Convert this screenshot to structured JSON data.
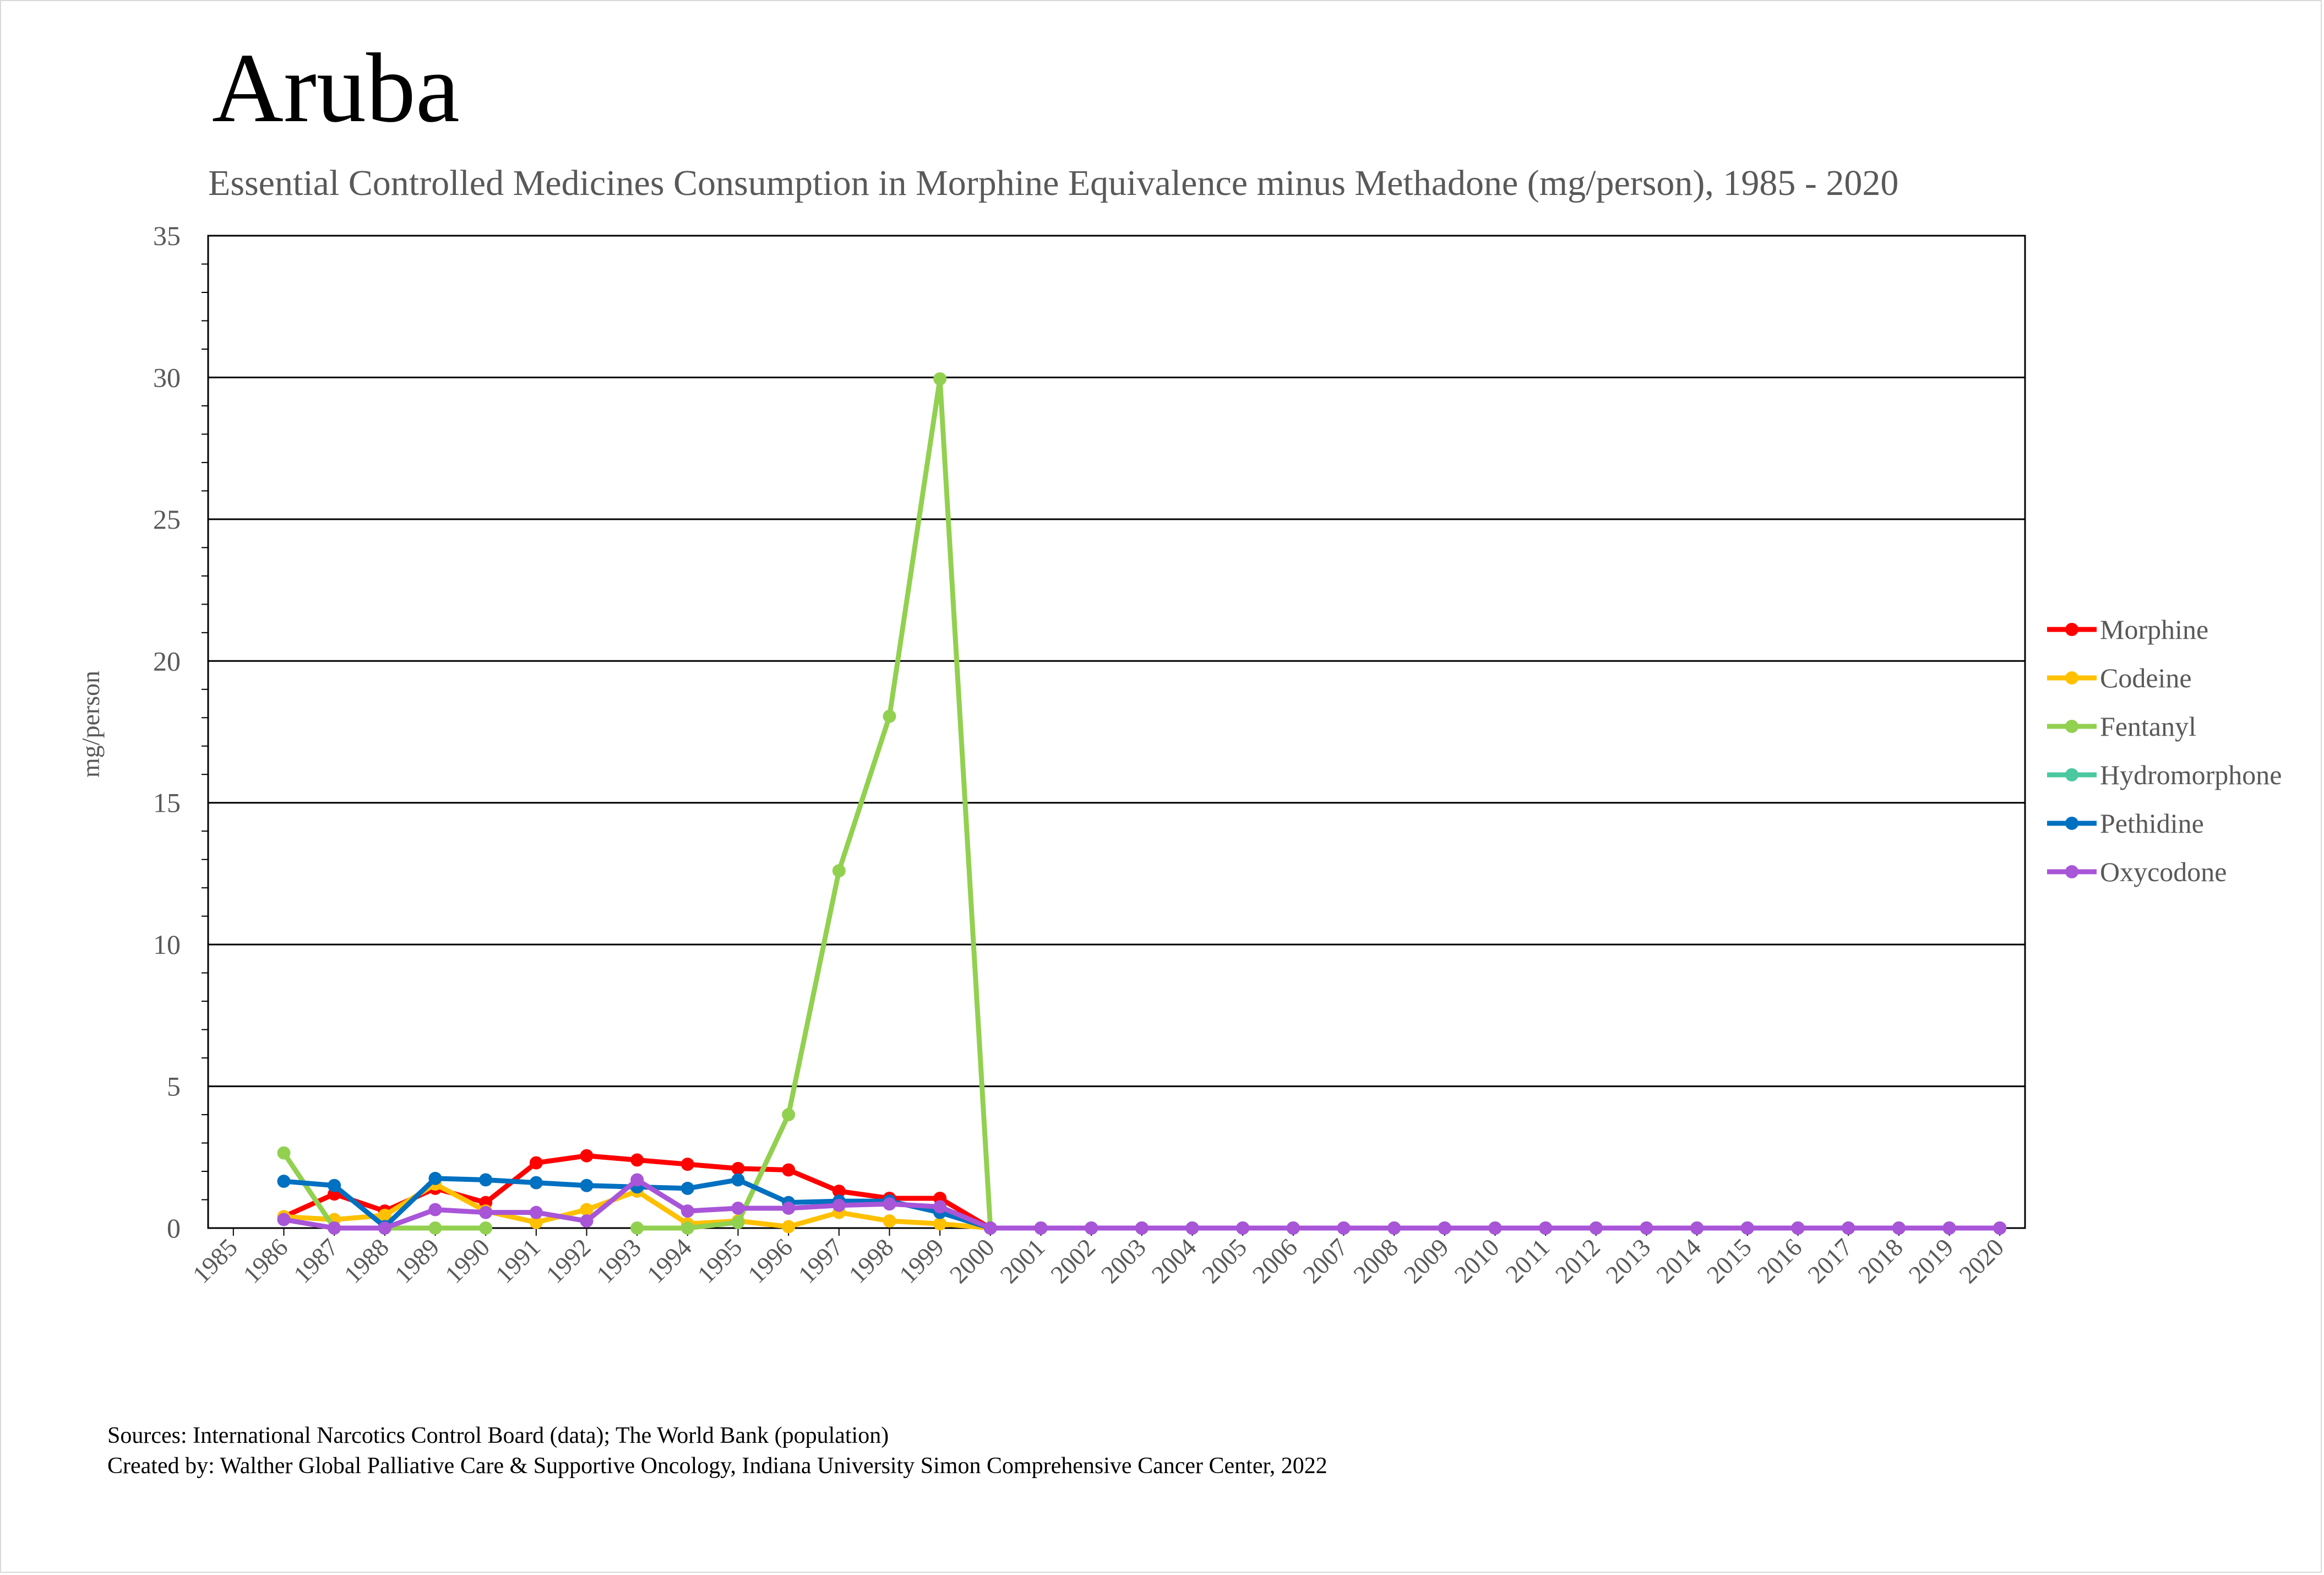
{
  "chart_data": {
    "type": "line",
    "title": "Aruba",
    "subtitle": "Essential Controlled Medicines Consumption in Morphine Equivalence minus Methadone (mg/person), 1985 - 2020",
    "xlabel": "",
    "ylabel": "mg/person",
    "ylim": [
      0,
      35
    ],
    "yticks": [
      0,
      5,
      10,
      15,
      20,
      25,
      30,
      35
    ],
    "ytick_labels": [
      "0",
      "5",
      "10",
      "15",
      "20",
      "25",
      "30",
      "35"
    ],
    "grid": "horizontal",
    "legend_position": "right",
    "categories": [
      "1985",
      "1986",
      "1987",
      "1988",
      "1989",
      "1990",
      "1991",
      "1992",
      "1993",
      "1994",
      "1995",
      "1996",
      "1997",
      "1998",
      "1999",
      "2000",
      "2001",
      "2002",
      "2003",
      "2004",
      "2005",
      "2006",
      "2007",
      "2008",
      "2009",
      "2010",
      "2011",
      "2012",
      "2013",
      "2014",
      "2015",
      "2016",
      "2017",
      "2018",
      "2019",
      "2020"
    ],
    "series": [
      {
        "name": "Morphine",
        "color": "#ff0000",
        "values": [
          null,
          0.4,
          1.2,
          0.6,
          1.4,
          0.9,
          2.3,
          2.55,
          2.4,
          2.25,
          2.1,
          2.05,
          1.3,
          1.05,
          1.05,
          0,
          0,
          0,
          0,
          0,
          0,
          0,
          0,
          0,
          0,
          0,
          0,
          0,
          0,
          0,
          0,
          0,
          0,
          0,
          0,
          0
        ]
      },
      {
        "name": "Codeine",
        "color": "#ffc000",
        "values": [
          null,
          0.4,
          0.3,
          0.45,
          1.55,
          0.6,
          0.2,
          0.65,
          1.3,
          0.15,
          0.25,
          0.05,
          0.55,
          0.25,
          0.15,
          0,
          0,
          0,
          0,
          0,
          0,
          0,
          0,
          0,
          0,
          0,
          0,
          0,
          0,
          0,
          0,
          0,
          0,
          0,
          0,
          0
        ]
      },
      {
        "name": "Fentanyl",
        "color": "#92d050",
        "values": [
          null,
          2.65,
          0,
          0,
          0,
          0,
          null,
          null,
          0,
          0,
          0.2,
          4.0,
          12.6,
          18.05,
          29.95,
          0,
          0,
          0,
          0,
          0,
          0,
          0,
          0,
          0,
          0,
          0,
          0,
          0,
          0,
          0,
          0,
          0,
          0,
          0,
          0,
          0
        ]
      },
      {
        "name": "Hydromorphone",
        "color": "#4bc8a0",
        "values": [
          null,
          null,
          null,
          null,
          null,
          null,
          null,
          null,
          null,
          null,
          null,
          null,
          null,
          null,
          null,
          0,
          0,
          0,
          0,
          0,
          0,
          0,
          0,
          0,
          0,
          0,
          0,
          0,
          0,
          0,
          0,
          0,
          0,
          0,
          0,
          0
        ]
      },
      {
        "name": "Pethidine",
        "color": "#0070c0",
        "values": [
          null,
          1.65,
          1.5,
          0.05,
          1.75,
          1.7,
          1.6,
          1.5,
          1.45,
          1.4,
          1.7,
          0.9,
          0.95,
          0.95,
          0.55,
          0,
          0,
          0,
          0,
          0,
          0,
          0,
          0,
          0,
          0,
          0,
          0,
          0,
          0,
          0,
          0,
          0,
          0,
          0,
          0,
          0
        ]
      },
      {
        "name": "Oxycodone",
        "color": "#a855d8",
        "values": [
          null,
          0.3,
          0.0,
          0.0,
          0.65,
          0.55,
          0.55,
          0.25,
          1.7,
          0.6,
          0.7,
          0.7,
          0.8,
          0.85,
          0.75,
          0,
          0,
          0,
          0,
          0,
          0,
          0,
          0,
          0,
          0,
          0,
          0,
          0,
          0,
          0,
          0,
          0,
          0,
          0,
          0,
          0
        ]
      }
    ]
  },
  "footer": {
    "sources": "Sources: International Narcotics Control Board (data); The World Bank (population)",
    "created_by": "Created by: Walther Global Palliative Care & Supportive Oncology, Indiana University Simon Comprehensive Cancer Center, 2022"
  }
}
